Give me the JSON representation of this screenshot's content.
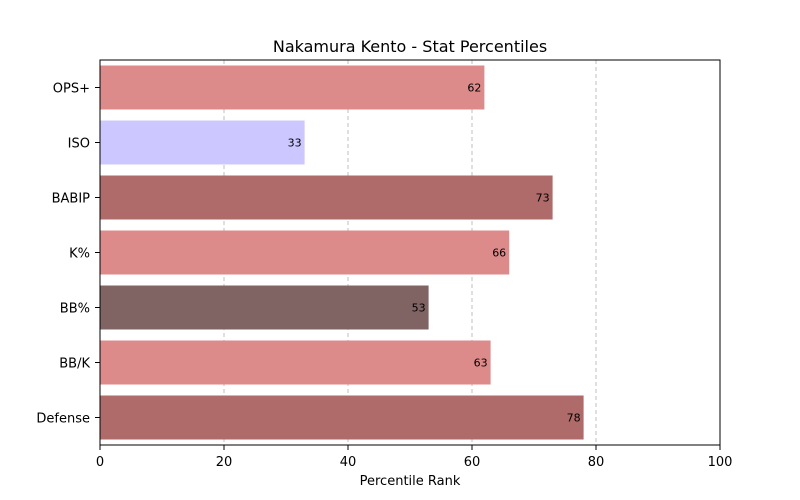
{
  "chart_data": {
    "type": "bar",
    "orientation": "horizontal",
    "title": "Nakamura Kento - Stat Percentiles",
    "xlabel": "Percentile Rank",
    "ylabel": "",
    "xlim": [
      0,
      100
    ],
    "xticks": [
      0,
      20,
      40,
      60,
      80,
      100
    ],
    "grid": "x-dashed",
    "categories": [
      "OPS+",
      "ISO",
      "BABIP",
      "K%",
      "BB%",
      "BB/K",
      "Defense"
    ],
    "values": [
      62,
      33,
      73,
      66,
      53,
      63,
      78
    ],
    "colors": [
      "#dc8a8a",
      "#ccc8ff",
      "#ae6b6a",
      "#dc8a8a",
      "#806464",
      "#dc8a8a",
      "#ae6b6a"
    ]
  }
}
